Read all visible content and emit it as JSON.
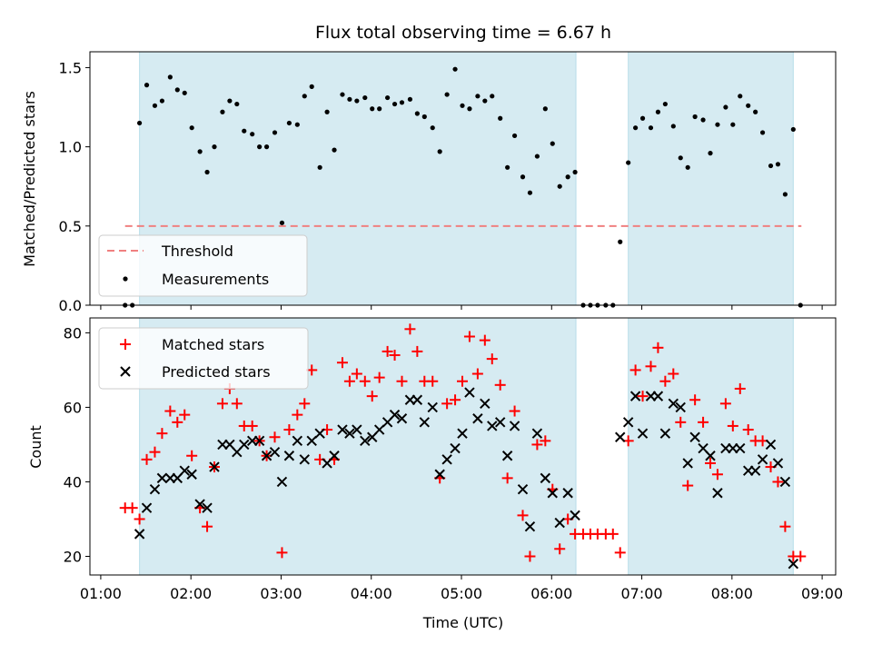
{
  "chart_data": {
    "type": "scatter",
    "title": "Flux total observing time = 6.67 h",
    "xlabel": "Time (UTC)",
    "x_unit": "hours UTC",
    "xlim": [
      0.88,
      9.15
    ],
    "x_ticks": [
      1,
      2,
      3,
      4,
      5,
      6,
      7,
      8,
      9
    ],
    "x_tick_labels": [
      "01:00",
      "02:00",
      "03:00",
      "04:00",
      "05:00",
      "06:00",
      "07:00",
      "08:00",
      "09:00"
    ],
    "shaded_intervals": [
      [
        1.43,
        6.27
      ],
      [
        6.85,
        8.68
      ]
    ],
    "panels": [
      {
        "ylabel": "Matched/Predicted stars",
        "ylim": [
          0,
          1.6
        ],
        "y_ticks": [
          0.0,
          0.5,
          1.0,
          1.5
        ],
        "y_tick_labels": [
          "0.0",
          "0.5",
          "1.0",
          "1.5"
        ],
        "legend": {
          "placement": "lower-left",
          "entries": [
            "Threshold",
            "Measurements"
          ]
        },
        "threshold": {
          "name": "Threshold",
          "value": 0.5,
          "x_range": [
            1.27,
            8.77
          ],
          "color": "#f08080"
        },
        "series": [
          {
            "name": "Measurements",
            "marker": "dot",
            "color": "#000000",
            "x": [
              1.27,
              1.35,
              1.43,
              1.51,
              1.6,
              1.68,
              1.77,
              1.85,
              1.93,
              2.01,
              2.1,
              2.18,
              2.26,
              2.35,
              2.43,
              2.51,
              2.59,
              2.68,
              2.76,
              2.84,
              2.93,
              3.01,
              3.09,
              3.18,
              3.26,
              3.34,
              3.43,
              3.51,
              3.59,
              3.68,
              3.76,
              3.84,
              3.93,
              4.01,
              4.09,
              4.18,
              4.26,
              4.34,
              4.43,
              4.51,
              4.59,
              4.68,
              4.76,
              4.84,
              4.93,
              5.01,
              5.09,
              5.18,
              5.26,
              5.34,
              5.43,
              5.51,
              5.59,
              5.68,
              5.76,
              5.84,
              5.93,
              6.01,
              6.09,
              6.18,
              6.26,
              6.35,
              6.43,
              6.51,
              6.6,
              6.68,
              6.76,
              6.85,
              6.93,
              7.01,
              7.1,
              7.18,
              7.26,
              7.35,
              7.43,
              7.51,
              7.59,
              7.68,
              7.76,
              7.84,
              7.93,
              8.01,
              8.09,
              8.18,
              8.26,
              8.34,
              8.43,
              8.51,
              8.59,
              8.68,
              8.76
            ],
            "y": [
              0,
              0,
              1.15,
              1.39,
              1.26,
              1.29,
              1.44,
              1.36,
              1.34,
              1.12,
              0.97,
              0.84,
              1.0,
              1.22,
              1.29,
              1.27,
              1.1,
              1.08,
              1.0,
              1.0,
              1.09,
              0.52,
              1.15,
              1.14,
              1.32,
              1.38,
              0.87,
              1.22,
              0.98,
              1.33,
              1.3,
              1.29,
              1.31,
              1.24,
              1.24,
              1.31,
              1.27,
              1.28,
              1.3,
              1.21,
              1.19,
              1.12,
              0.97,
              1.33,
              1.49,
              1.26,
              1.24,
              1.32,
              1.29,
              1.32,
              1.18,
              0.87,
              1.07,
              0.81,
              0.71,
              0.94,
              1.24,
              1.02,
              0.75,
              0.81,
              0.84,
              0,
              0,
              0,
              0,
              0,
              0.4,
              0.9,
              1.12,
              1.18,
              1.12,
              1.22,
              1.27,
              1.13,
              0.93,
              0.87,
              1.19,
              1.17,
              0.96,
              1.14,
              1.25,
              1.14,
              1.32,
              1.26,
              1.22,
              1.09,
              0.88,
              0.89,
              0.7,
              1.11,
              0
            ]
          }
        ]
      },
      {
        "ylabel": "Count",
        "ylim": [
          15,
          84
        ],
        "y_ticks": [
          20,
          40,
          60,
          80
        ],
        "y_tick_labels": [
          "20",
          "40",
          "60",
          "80"
        ],
        "legend": {
          "placement": "upper-left",
          "entries": [
            "Matched stars",
            "Predicted stars"
          ]
        },
        "series": [
          {
            "name": "Matched stars",
            "marker": "plus",
            "color": "#ff0000",
            "x": [
              1.27,
              1.35,
              1.43,
              1.51,
              1.6,
              1.68,
              1.77,
              1.85,
              1.93,
              2.01,
              2.1,
              2.18,
              2.26,
              2.35,
              2.43,
              2.51,
              2.59,
              2.68,
              2.76,
              2.84,
              2.93,
              3.01,
              3.09,
              3.18,
              3.26,
              3.34,
              3.43,
              3.51,
              3.59,
              3.68,
              3.76,
              3.84,
              3.93,
              4.01,
              4.09,
              4.18,
              4.26,
              4.34,
              4.43,
              4.51,
              4.59,
              4.68,
              4.76,
              4.84,
              4.93,
              5.01,
              5.09,
              5.18,
              5.26,
              5.34,
              5.43,
              5.51,
              5.59,
              5.68,
              5.76,
              5.84,
              5.93,
              6.01,
              6.09,
              6.18,
              6.26,
              6.35,
              6.43,
              6.51,
              6.6,
              6.68,
              6.76,
              6.85,
              6.93,
              7.01,
              7.1,
              7.18,
              7.26,
              7.35,
              7.43,
              7.51,
              7.59,
              7.68,
              7.76,
              7.84,
              7.93,
              8.01,
              8.09,
              8.18,
              8.26,
              8.34,
              8.43,
              8.51,
              8.59,
              8.68,
              8.76
            ],
            "y": [
              33,
              33,
              30,
              46,
              48,
              53,
              59,
              56,
              58,
              47,
              33,
              28,
              44,
              61,
              65,
              61,
              55,
              55,
              51,
              47,
              52,
              21,
              54,
              58,
              61,
              70,
              46,
              54,
              46,
              72,
              67,
              69,
              67,
              63,
              68,
              75,
              74,
              67,
              81,
              75,
              67,
              67,
              41,
              61,
              62,
              67,
              79,
              69,
              78,
              73,
              66,
              41,
              59,
              31,
              20,
              50,
              51,
              38,
              22,
              30,
              26,
              26,
              26,
              26,
              26,
              26,
              21,
              51,
              70,
              63,
              71,
              76,
              67,
              69,
              56,
              39,
              62,
              56,
              45,
              42,
              61,
              55,
              65,
              54,
              51,
              51,
              44,
              40,
              28,
              20,
              20
            ]
          },
          {
            "name": "Predicted stars",
            "marker": "x",
            "color": "#000000",
            "x": [
              1.43,
              1.51,
              1.6,
              1.68,
              1.77,
              1.85,
              1.93,
              2.01,
              2.1,
              2.18,
              2.26,
              2.35,
              2.43,
              2.51,
              2.59,
              2.68,
              2.76,
              2.84,
              2.93,
              3.01,
              3.09,
              3.18,
              3.26,
              3.34,
              3.43,
              3.51,
              3.59,
              3.68,
              3.76,
              3.84,
              3.93,
              4.01,
              4.09,
              4.18,
              4.26,
              4.34,
              4.43,
              4.51,
              4.59,
              4.68,
              4.76,
              4.84,
              4.93,
              5.01,
              5.09,
              5.18,
              5.26,
              5.34,
              5.43,
              5.51,
              5.59,
              5.68,
              5.76,
              5.84,
              5.93,
              6.01,
              6.09,
              6.18,
              6.26,
              6.76,
              6.85,
              6.93,
              7.01,
              7.1,
              7.18,
              7.26,
              7.35,
              7.43,
              7.51,
              7.59,
              7.68,
              7.76,
              7.84,
              7.93,
              8.01,
              8.09,
              8.18,
              8.26,
              8.34,
              8.43,
              8.51,
              8.59,
              8.68
            ],
            "y": [
              26,
              33,
              38,
              41,
              41,
              41,
              43,
              42,
              34,
              33,
              44,
              50,
              50,
              48,
              50,
              51,
              51,
              47,
              48,
              40,
              47,
              51,
              46,
              51,
              53,
              45,
              47,
              54,
              53,
              54,
              51,
              52,
              54,
              56,
              58,
              57,
              62,
              62,
              56,
              60,
              42,
              46,
              49,
              53,
              64,
              57,
              61,
              55,
              56,
              47,
              55,
              38,
              28,
              53,
              41,
              37,
              29,
              37,
              31,
              52,
              56,
              63,
              53,
              63,
              63,
              53,
              61,
              60,
              45,
              52,
              49,
              47,
              37,
              49,
              49,
              49,
              43,
              43,
              46,
              50,
              45,
              40,
              18
            ]
          }
        ]
      }
    ]
  }
}
